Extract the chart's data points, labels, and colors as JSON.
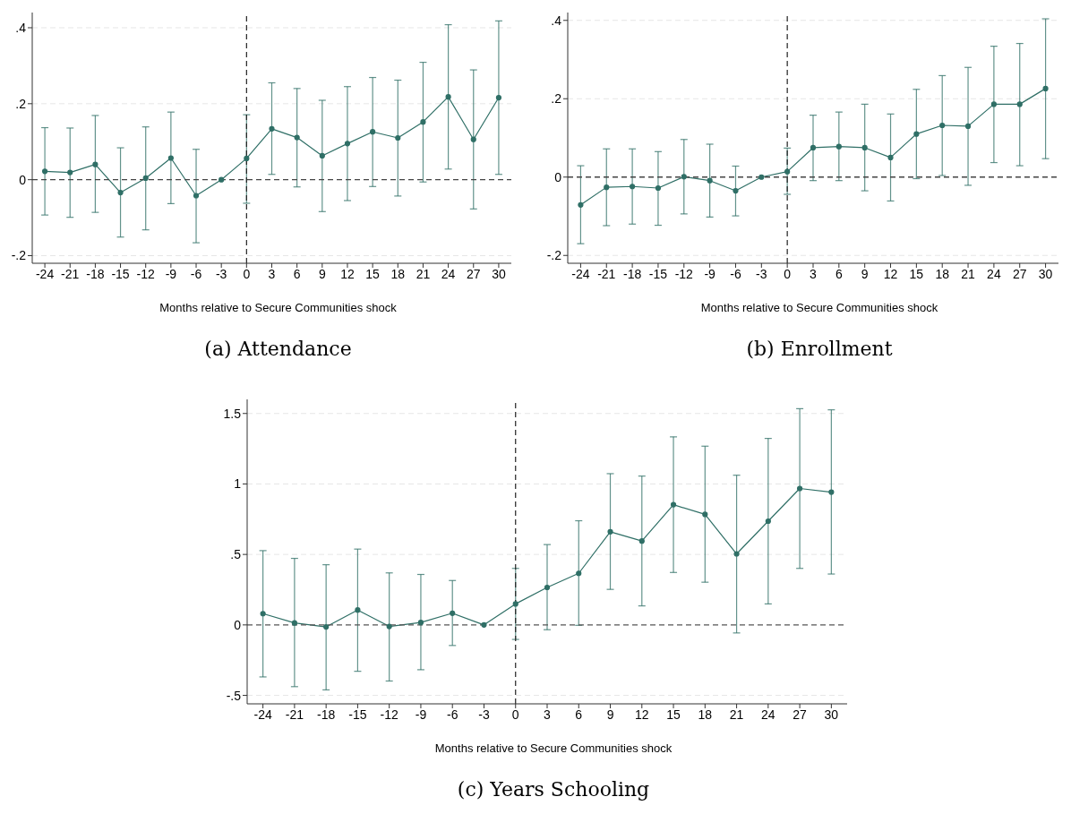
{
  "chart_data": [
    {
      "type": "line",
      "title": "(a) Attendance",
      "xlabel": "Months relative to Secure Communities shock",
      "x": [
        -24,
        -21,
        -18,
        -15,
        -12,
        -9,
        -6,
        -3,
        0,
        3,
        6,
        9,
        12,
        15,
        18,
        21,
        24,
        27,
        30
      ],
      "series": [
        {
          "color": "#2f6f66",
          "values": [
            0.022,
            0.019,
            0.04,
            -0.034,
            0.004,
            0.057,
            -0.042,
            0,
            0.056,
            0.134,
            0.111,
            0.063,
            0.095,
            0.126,
            0.11,
            0.152,
            0.218,
            0.106,
            0.216
          ],
          "errors": [
            [
              -0.093,
              0.137
            ],
            [
              -0.099,
              0.136
            ],
            [
              -0.086,
              0.169
            ],
            [
              -0.151,
              0.084
            ],
            [
              -0.132,
              0.139
            ],
            [
              -0.063,
              0.178
            ],
            [
              -0.166,
              0.08
            ],
            null,
            [
              -0.062,
              0.171
            ],
            [
              0.014,
              0.255
            ],
            [
              -0.019,
              0.24
            ],
            [
              -0.084,
              0.209
            ],
            [
              -0.055,
              0.245
            ],
            [
              -0.018,
              0.269
            ],
            [
              -0.043,
              0.262
            ],
            [
              -0.006,
              0.309
            ],
            [
              0.028,
              0.408
            ],
            [
              -0.077,
              0.289
            ],
            [
              0.014,
              0.418
            ]
          ]
        }
      ],
      "xlim": [
        -25.5,
        31.5
      ],
      "xticks": [
        -24,
        -21,
        -18,
        -15,
        -12,
        -9,
        -6,
        -3,
        0,
        3,
        6,
        9,
        12,
        15,
        18,
        21,
        24,
        27,
        30
      ],
      "ylim": [
        -0.22,
        0.44
      ],
      "yticks": [
        {
          "value": -0.2,
          "label": "-.2"
        },
        {
          "value": 0,
          "label": "0"
        },
        {
          "value": 0.2,
          "label": ".2"
        },
        {
          "value": 0.4,
          "label": ".4"
        }
      ],
      "ref_lines": [
        {
          "axis": "x",
          "value": 0,
          "line_style": "dashed",
          "color": "#222222"
        },
        {
          "axis": "y",
          "value": 0,
          "line_style": "dashed",
          "color": "#444444"
        }
      ],
      "grid": "y",
      "marker": "circle",
      "line_style": "solid"
    },
    {
      "type": "line",
      "title": "(b) Enrollment",
      "xlabel": "Months relative to Secure Communities shock",
      "x": [
        -24,
        -21,
        -18,
        -15,
        -12,
        -9,
        -6,
        -3,
        0,
        3,
        6,
        9,
        12,
        15,
        18,
        21,
        24,
        27,
        30
      ],
      "series": [
        {
          "color": "#2f6f66",
          "values": [
            -0.071,
            -0.026,
            -0.024,
            -0.028,
            0.001,
            -0.009,
            -0.035,
            0,
            0.014,
            0.075,
            0.078,
            0.075,
            0.05,
            0.11,
            0.132,
            0.13,
            0.186,
            0.186,
            0.226
          ],
          "errors": [
            [
              -0.17,
              0.029
            ],
            [
              -0.124,
              0.072
            ],
            [
              -0.12,
              0.072
            ],
            [
              -0.123,
              0.065
            ],
            [
              -0.094,
              0.096
            ],
            [
              -0.102,
              0.084
            ],
            [
              -0.099,
              0.028
            ],
            null,
            [
              -0.044,
              0.074
            ],
            [
              -0.009,
              0.158
            ],
            [
              -0.009,
              0.166
            ],
            [
              -0.035,
              0.186
            ],
            [
              -0.061,
              0.161
            ],
            [
              -0.004,
              0.224
            ],
            [
              0.004,
              0.259
            ],
            [
              -0.021,
              0.28
            ],
            [
              0.037,
              0.334
            ],
            [
              0.029,
              0.341
            ],
            [
              0.047,
              0.404
            ]
          ]
        }
      ],
      "xlim": [
        -25.5,
        31.5
      ],
      "xticks": [
        -24,
        -21,
        -18,
        -15,
        -12,
        -9,
        -6,
        -3,
        0,
        3,
        6,
        9,
        12,
        15,
        18,
        21,
        24,
        27,
        30
      ],
      "ylim": [
        -0.22,
        0.42
      ],
      "yticks": [
        {
          "value": -0.2,
          "label": "-.2"
        },
        {
          "value": 0,
          "label": "0"
        },
        {
          "value": 0.2,
          "label": ".2"
        },
        {
          "value": 0.4,
          "label": ".4"
        }
      ],
      "ref_lines": [
        {
          "axis": "x",
          "value": 0,
          "line_style": "dashed",
          "color": "#222222"
        },
        {
          "axis": "y",
          "value": 0,
          "line_style": "dashed",
          "color": "#444444"
        }
      ],
      "grid": "y",
      "marker": "circle",
      "line_style": "solid"
    },
    {
      "type": "line",
      "title": "(c) Years Schooling",
      "xlabel": "Months relative to Secure Communities shock",
      "x": [
        -24,
        -21,
        -18,
        -15,
        -12,
        -9,
        -6,
        -3,
        0,
        3,
        6,
        9,
        12,
        15,
        18,
        21,
        24,
        27,
        30
      ],
      "series": [
        {
          "color": "#2f6f66",
          "values": [
            0.08,
            0.014,
            -0.014,
            0.106,
            -0.011,
            0.017,
            0.083,
            0,
            0.149,
            0.266,
            0.366,
            0.661,
            0.595,
            0.853,
            0.784,
            0.504,
            0.736,
            0.968,
            0.942
          ],
          "errors": [
            [
              -0.369,
              0.527
            ],
            [
              -0.438,
              0.472
            ],
            [
              -0.461,
              0.427
            ],
            [
              -0.329,
              0.538
            ],
            [
              -0.398,
              0.369
            ],
            [
              -0.318,
              0.358
            ],
            [
              -0.146,
              0.315
            ],
            null,
            [
              -0.103,
              0.401
            ],
            [
              -0.034,
              0.57
            ],
            [
              -0.003,
              0.739
            ],
            [
              0.252,
              1.073
            ],
            [
              0.135,
              1.056
            ],
            [
              0.372,
              1.334
            ],
            [
              0.303,
              1.268
            ],
            [
              -0.057,
              1.062
            ],
            [
              0.149,
              1.323
            ],
            [
              0.401,
              1.534
            ],
            [
              0.361,
              1.526
            ]
          ]
        }
      ],
      "xlim": [
        -25.5,
        31.5
      ],
      "xticks": [
        -24,
        -21,
        -18,
        -15,
        -12,
        -9,
        -6,
        -3,
        0,
        3,
        6,
        9,
        12,
        15,
        18,
        21,
        24,
        27,
        30
      ],
      "ylim": [
        -0.56,
        1.6
      ],
      "yticks": [
        {
          "value": -0.5,
          "label": "-.5"
        },
        {
          "value": 0,
          "label": "0"
        },
        {
          "value": 0.5,
          "label": ".5"
        },
        {
          "value": 1,
          "label": "1"
        },
        {
          "value": 1.5,
          "label": "1.5"
        }
      ],
      "ref_lines": [
        {
          "axis": "x",
          "value": 0,
          "line_style": "dashed",
          "color": "#222222"
        },
        {
          "axis": "y",
          "value": 0,
          "line_style": "dashed",
          "color": "#555555"
        }
      ],
      "grid": "y",
      "marker": "circle",
      "line_style": "solid"
    }
  ]
}
